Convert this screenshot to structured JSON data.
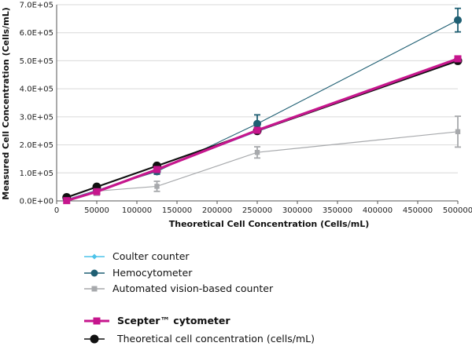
{
  "chart_data": {
    "type": "line",
    "title": "",
    "xlabel": "Theoretical Cell Concentration (Cells/mL)",
    "ylabel": "Measured Cell Concentration (Cells/mL)",
    "xlim": [
      0,
      500000
    ],
    "ylim": [
      0,
      700000
    ],
    "x_ticks": [
      0,
      50000,
      100000,
      150000,
      200000,
      250000,
      300000,
      350000,
      400000,
      450000,
      500000
    ],
    "x_tick_labels": [
      "0",
      "50000",
      "100000",
      "150000",
      "200000",
      "250000",
      "300000",
      "350000",
      "400000",
      "450000",
      "500000"
    ],
    "y_ticks": [
      0,
      100000,
      200000,
      300000,
      400000,
      500000,
      600000,
      700000
    ],
    "y_tick_labels": [
      "0.0E+00",
      "1.0E+05",
      "2.0E+05",
      "3.0E+05",
      "4.0E+05",
      "5.0E+05",
      "6.0E+05",
      "7.0E+05"
    ],
    "grid": true,
    "series": [
      {
        "name": "Automated vision-based counter",
        "color": "#a7a9ac",
        "marker": "square",
        "x": [
          12500,
          50000,
          125000,
          250000,
          500000
        ],
        "y": [
          2000,
          35000,
          52000,
          173000,
          247000
        ],
        "err": [
          3000,
          15000,
          18000,
          20000,
          55000
        ]
      },
      {
        "name": "Hemocytometer",
        "color": "#1f5f73",
        "marker": "circle",
        "x": [
          12500,
          50000,
          125000,
          250000,
          500000
        ],
        "y": [
          5000,
          38000,
          105000,
          275000,
          645000
        ],
        "err": [
          0,
          5000,
          10000,
          32000,
          42000
        ]
      },
      {
        "name": "Coulter counter",
        "color": "#4dc3ea",
        "marker": "diamond",
        "x": [
          12500,
          50000,
          125000,
          250000,
          500000
        ],
        "y": [
          4000,
          36000,
          112000,
          248000,
          507000
        ],
        "err": [
          0,
          0,
          0,
          0,
          0
        ]
      },
      {
        "name": "Theoretical cell concentration (cells/mL)",
        "color": "#111111",
        "marker": "circle",
        "x": [
          12500,
          50000,
          125000,
          250000,
          500000
        ],
        "y": [
          12500,
          50000,
          125000,
          250000,
          500000
        ],
        "err": [
          0,
          0,
          0,
          0,
          0
        ]
      },
      {
        "name": "Scepter™ cytometer",
        "color": "#c6168d",
        "marker": "square",
        "x": [
          12500,
          50000,
          125000,
          250000,
          500000
        ],
        "y": [
          1000,
          33000,
          112000,
          252000,
          507000
        ],
        "err": [
          0,
          0,
          0,
          0,
          0
        ]
      }
    ],
    "legend": [
      {
        "label": "Coulter counter",
        "color": "#4dc3ea",
        "marker": "diamond",
        "bold": false
      },
      {
        "label": "Hemocytometer",
        "color": "#1f5f73",
        "marker": "circle",
        "bold": false
      },
      {
        "label": "Automated vision-based counter",
        "color": "#a7a9ac",
        "marker": "square",
        "bold": false
      },
      {
        "label": "Scepter™ cytometer",
        "color": "#c6168d",
        "marker": "square",
        "bold": true
      },
      {
        "label": "Theoretical cell concentration (cells/mL)",
        "color": "#111111",
        "marker": "circle",
        "bold": false
      }
    ]
  }
}
